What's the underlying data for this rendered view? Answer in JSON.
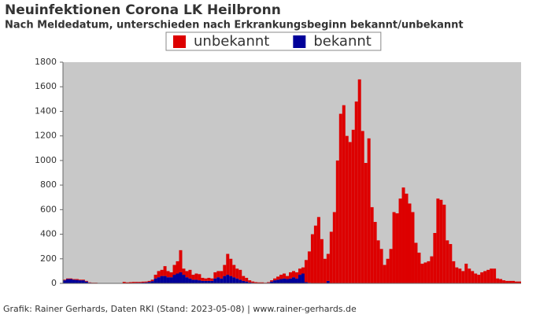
{
  "chart_data": {
    "type": "stacked_bar",
    "title": "Neuinfektionen Corona LK Heilbronn",
    "subtitle": "Nach Meldedatum, unterschieden nach Erkrankungsbeginn bekannt/unbekannt",
    "footer": "Grafik: Rainer Gerhards, Daten RKI (Stand: 2023-05-08) | www.rainer-gerhards.de",
    "categories": [
      null,
      null,
      null,
      null,
      null,
      null,
      null,
      null,
      null,
      null,
      null,
      null,
      null,
      null,
      null,
      null,
      null,
      null,
      null,
      null,
      null,
      null,
      null,
      null,
      null,
      null,
      null,
      null,
      null,
      null,
      null,
      null,
      null,
      null,
      null,
      null,
      null,
      null,
      null,
      null,
      null,
      null,
      null,
      null,
      null,
      null,
      null,
      null,
      null,
      null,
      null,
      null,
      null,
      null,
      null,
      null,
      null,
      null,
      null,
      null,
      null,
      null,
      null,
      null,
      null,
      null,
      null,
      null,
      null,
      null,
      null,
      null,
      null,
      null,
      null,
      null,
      null,
      null,
      null,
      null,
      null,
      null,
      null,
      null,
      null,
      null,
      null,
      null,
      null,
      null,
      null,
      null,
      null,
      null,
      null,
      null,
      null,
      null,
      null,
      null,
      null,
      null,
      null,
      null,
      null,
      null,
      null,
      null,
      null,
      null,
      null,
      null,
      null,
      null,
      null,
      null,
      null,
      null,
      null,
      null,
      null,
      null,
      null,
      null,
      null,
      null,
      null,
      null,
      null,
      null,
      null,
      null,
      null,
      null,
      null,
      null,
      null,
      null,
      null,
      null,
      null,
      null,
      null,
      null,
      null,
      null
    ],
    "series": [
      {
        "name": "unbekannt",
        "color": "#dd0000",
        "values": [
          5,
          5,
          5,
          5,
          7,
          5,
          5,
          5,
          3,
          2,
          3,
          2,
          2,
          2,
          3,
          2,
          3,
          2,
          3,
          10,
          6,
          7,
          8,
          7,
          7,
          8,
          7,
          8,
          12,
          30,
          50,
          50,
          80,
          50,
          40,
          80,
          100,
          180,
          50,
          50,
          70,
          40,
          50,
          50,
          25,
          20,
          25,
          20,
          50,
          50,
          60,
          90,
          170,
          140,
          100,
          80,
          80,
          40,
          30,
          17,
          10,
          7,
          6,
          5,
          3,
          5,
          10,
          15,
          25,
          35,
          40,
          25,
          50,
          50,
          50,
          50,
          50,
          180,
          255,
          400,
          470,
          540,
          360,
          200,
          220,
          420,
          580,
          1000,
          1380,
          1450,
          1200,
          1150,
          1250,
          1480,
          1660,
          1240,
          980,
          1180,
          620,
          500,
          350,
          280,
          150,
          200,
          280,
          580,
          570,
          690,
          780,
          730,
          650,
          580,
          330,
          250,
          160,
          170,
          180,
          220,
          410,
          690,
          680,
          640,
          350,
          320,
          180,
          130,
          120,
          100,
          160,
          120,
          100,
          80,
          70,
          90,
          100,
          110,
          120,
          120,
          40,
          35,
          25,
          20,
          20,
          20,
          15,
          15
        ]
      },
      {
        "name": "bekannt",
        "color": "#000099",
        "values": [
          25,
          35,
          35,
          30,
          28,
          25,
          25,
          15,
          5,
          3,
          2,
          1,
          1,
          0,
          0,
          0,
          0,
          0,
          0,
          2,
          2,
          3,
          4,
          5,
          5,
          6,
          8,
          12,
          18,
          40,
          50,
          60,
          60,
          50,
          50,
          70,
          80,
          90,
          70,
          50,
          40,
          30,
          30,
          25,
          20,
          20,
          20,
          20,
          40,
          50,
          40,
          60,
          70,
          60,
          50,
          40,
          30,
          20,
          15,
          8,
          5,
          3,
          2,
          3,
          2,
          5,
          15,
          25,
          30,
          35,
          40,
          35,
          40,
          50,
          40,
          70,
          80,
          10,
          5,
          0,
          0,
          0,
          0,
          0,
          20,
          0,
          0,
          0,
          0,
          0,
          0,
          0,
          0,
          0,
          0,
          0,
          0,
          0,
          0,
          0,
          0,
          0,
          0,
          0,
          0,
          0,
          0,
          0,
          0,
          0,
          0,
          0,
          0,
          0,
          0,
          0,
          0,
          0,
          0,
          0,
          0,
          0,
          0,
          0,
          0,
          0,
          0,
          0,
          0,
          0,
          0,
          0,
          0,
          0,
          0,
          0,
          0,
          0,
          0,
          0,
          0,
          0,
          0,
          0,
          0,
          0
        ]
      }
    ],
    "ylim": [
      0,
      1800
    ],
    "yticks": [
      0,
      200,
      400,
      600,
      800,
      1000,
      1200,
      1400,
      1600,
      1800
    ],
    "grid": false,
    "plot_background": "#c8c8c8"
  }
}
